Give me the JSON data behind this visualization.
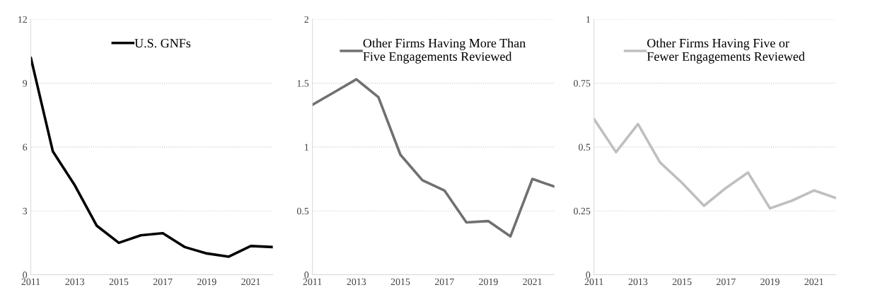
{
  "chart_data": [
    {
      "type": "line",
      "x": [
        2011,
        2012,
        2013,
        2014,
        2015,
        2016,
        2017,
        2018,
        2019,
        2020,
        2021,
        2022
      ],
      "series": [
        {
          "name": "U.S. GNFs",
          "color": "#000000",
          "values": [
            10.2,
            5.8,
            4.2,
            2.3,
            1.5,
            1.85,
            1.95,
            1.3,
            1.0,
            0.85,
            1.35,
            1.3
          ]
        }
      ],
      "xlim": [
        2011,
        2022
      ],
      "xticks": [
        2011,
        2013,
        2015,
        2017,
        2019,
        2021
      ],
      "ylim": [
        0,
        12
      ],
      "yticks": [
        0,
        3,
        6,
        9,
        12
      ],
      "grid": "y",
      "legend": "top",
      "marker": "none",
      "line_style": "solid"
    },
    {
      "type": "line",
      "x": [
        2011,
        2012,
        2013,
        2014,
        2015,
        2016,
        2017,
        2018,
        2019,
        2020,
        2021,
        2022
      ],
      "series": [
        {
          "name": "Other Firms Having More Than Five Engagements Reviewed",
          "color": "#707070",
          "values": [
            1.33,
            1.43,
            1.53,
            1.39,
            0.94,
            0.74,
            0.66,
            0.41,
            0.42,
            0.3,
            0.75,
            0.69
          ]
        }
      ],
      "xlim": [
        2011,
        2022
      ],
      "xticks": [
        2011,
        2013,
        2015,
        2017,
        2019,
        2021
      ],
      "ylim": [
        0,
        2
      ],
      "yticks": [
        0,
        0.5,
        1,
        1.5,
        2
      ],
      "grid": "y",
      "legend": "top",
      "marker": "none",
      "line_style": "solid"
    },
    {
      "type": "line",
      "x": [
        2011,
        2012,
        2013,
        2014,
        2015,
        2016,
        2017,
        2018,
        2019,
        2020,
        2021,
        2022
      ],
      "series": [
        {
          "name": "Other Firms Having Five or Fewer Engagements Reviewed",
          "color": "#bfbfbf",
          "values": [
            0.61,
            0.48,
            0.59,
            0.44,
            0.36,
            0.27,
            0.34,
            0.4,
            0.26,
            0.29,
            0.33,
            0.3
          ]
        }
      ],
      "xlim": [
        2011,
        2022
      ],
      "xticks": [
        2011,
        2013,
        2015,
        2017,
        2019,
        2021
      ],
      "ylim": [
        0,
        1
      ],
      "yticks": [
        0,
        0.25,
        0.5,
        0.75,
        1
      ],
      "grid": "y",
      "legend": "top",
      "marker": "none",
      "line_style": "solid"
    }
  ]
}
